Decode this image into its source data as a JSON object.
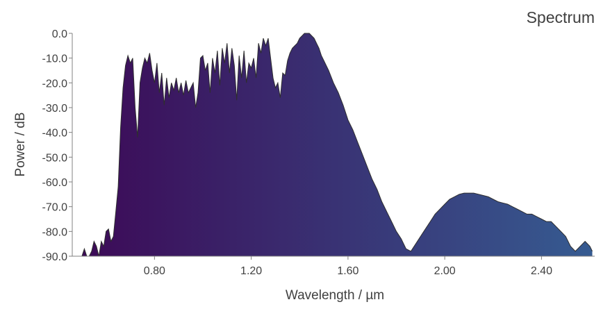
{
  "chart_data": {
    "type": "area",
    "title": "Spectrum",
    "xlabel": "Wavelength / µm",
    "ylabel": "Power / dB",
    "xlim": [
      0.46,
      2.62
    ],
    "ylim": [
      -90,
      0
    ],
    "xticks": [
      0.8,
      1.2,
      1.6,
      2.0,
      2.4
    ],
    "xtick_labels": [
      "0.80",
      "1.20",
      "1.60",
      "2.00",
      "2.40"
    ],
    "yticks": [
      0,
      -10,
      -20,
      -30,
      -40,
      -50,
      -60,
      -70,
      -80,
      -90
    ],
    "ytick_labels": [
      "0.0",
      "-10.0",
      "-20.0",
      "-30.0",
      "-40.0",
      "-50.0",
      "-60.0",
      "-70.0",
      "-80.0",
      "-90.0"
    ],
    "grid": false,
    "fill_gradient": [
      "#3c0a57",
      "#365b91"
    ],
    "outline_color": "#2e2e2e",
    "series": [
      {
        "x": [
          0.5,
          0.51,
          0.52,
          0.53,
          0.54,
          0.55,
          0.56,
          0.57,
          0.58,
          0.59,
          0.6,
          0.61,
          0.62,
          0.63,
          0.64,
          0.65,
          0.66,
          0.67,
          0.68,
          0.69,
          0.7,
          0.71,
          0.72,
          0.73,
          0.74,
          0.75,
          0.76,
          0.77,
          0.78,
          0.79,
          0.8,
          0.81,
          0.82,
          0.83,
          0.84,
          0.85,
          0.86,
          0.87,
          0.88,
          0.89,
          0.9,
          0.91,
          0.92,
          0.93,
          0.94,
          0.95,
          0.96,
          0.97,
          0.98,
          0.99,
          1.0,
          1.01,
          1.02,
          1.03,
          1.04,
          1.05,
          1.06,
          1.07,
          1.08,
          1.09,
          1.1,
          1.11,
          1.12,
          1.13,
          1.14,
          1.15,
          1.16,
          1.17,
          1.18,
          1.19,
          1.2,
          1.21,
          1.22,
          1.23,
          1.24,
          1.25,
          1.26,
          1.27,
          1.28,
          1.29,
          1.3,
          1.31,
          1.32,
          1.33,
          1.34,
          1.35,
          1.36,
          1.37,
          1.38,
          1.39,
          1.4,
          1.41,
          1.42,
          1.43,
          1.44,
          1.45,
          1.46,
          1.47,
          1.48,
          1.49,
          1.5,
          1.52,
          1.54,
          1.56,
          1.58,
          1.6,
          1.62,
          1.64,
          1.66,
          1.68,
          1.7,
          1.72,
          1.74,
          1.76,
          1.78,
          1.8,
          1.82,
          1.84,
          1.86,
          1.88,
          1.9,
          1.92,
          1.94,
          1.96,
          1.98,
          2.0,
          2.02,
          2.04,
          2.06,
          2.08,
          2.1,
          2.12,
          2.14,
          2.16,
          2.18,
          2.2,
          2.22,
          2.24,
          2.26,
          2.28,
          2.3,
          2.32,
          2.34,
          2.36,
          2.38,
          2.4,
          2.42,
          2.44,
          2.46,
          2.48,
          2.5,
          2.52,
          2.54,
          2.56,
          2.58,
          2.6,
          2.61
        ],
        "y": [
          -90,
          -87,
          -90,
          -90,
          -88,
          -84,
          -86,
          -90,
          -84,
          -86,
          -80,
          -79,
          -84,
          -82,
          -72,
          -62,
          -38,
          -22,
          -13,
          -9,
          -12,
          -10,
          -30,
          -42,
          -20,
          -14,
          -10,
          -12,
          -8,
          -15,
          -20,
          -12,
          -24,
          -16,
          -29,
          -18,
          -26,
          -20,
          -23,
          -18,
          -24,
          -20,
          -25,
          -19,
          -24,
          -22,
          -20,
          -30,
          -24,
          -10,
          -9,
          -15,
          -12,
          -24,
          -10,
          -16,
          -7,
          -21,
          -6,
          -12,
          -4,
          -16,
          -6,
          -13,
          -27,
          -9,
          -18,
          -7,
          -20,
          -12,
          -14,
          -10,
          -18,
          -4,
          -8,
          -2,
          -5,
          -2,
          -10,
          -18,
          -22,
          -20,
          -26,
          -16,
          -17,
          -11,
          -8,
          -6,
          -5,
          -4,
          -2,
          -1,
          0,
          0,
          0,
          -1,
          -2,
          -4,
          -6,
          -9,
          -11,
          -15,
          -20,
          -24,
          -29,
          -35,
          -39,
          -44,
          -49,
          -54,
          -59,
          -63,
          -68,
          -72,
          -76,
          -80,
          -83,
          -87,
          -88,
          -85,
          -82,
          -79,
          -76,
          -73,
          -71,
          -69,
          -67,
          -66,
          -65,
          -64.5,
          -64.5,
          -64.5,
          -65,
          -65.5,
          -66,
          -67,
          -68,
          -68.5,
          -69,
          -70,
          -71,
          -72,
          -73,
          -73,
          -74,
          -75,
          -76,
          -76,
          -78,
          -80,
          -82,
          -86,
          -88,
          -86,
          -84,
          -86,
          -88
        ]
      }
    ]
  }
}
